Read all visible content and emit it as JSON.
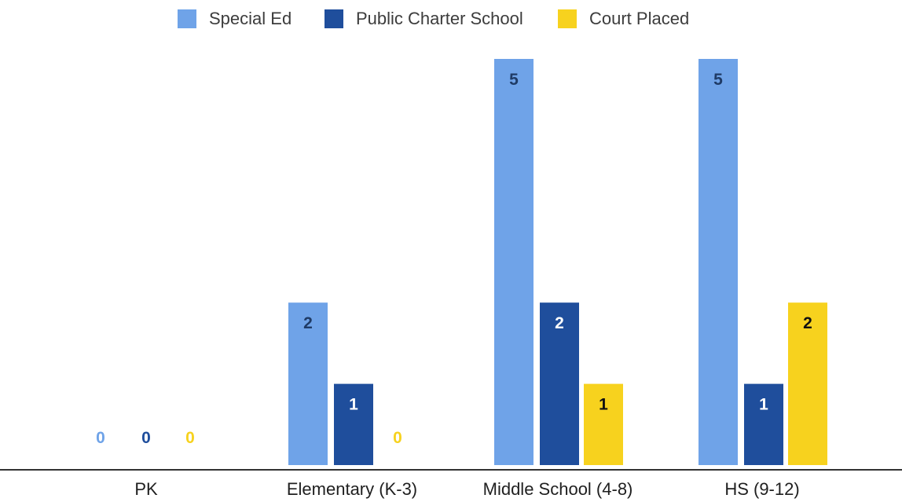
{
  "chart_data": {
    "type": "bar",
    "categories": [
      "PK",
      "Elementary (K-3)",
      "Middle School (4-8)",
      "HS (9-12)"
    ],
    "series": [
      {
        "name": "Special Ed",
        "values": [
          0,
          2,
          5,
          5
        ],
        "color": "#6fa3e8"
      },
      {
        "name": "Public Charter School",
        "values": [
          0,
          1,
          2,
          1
        ],
        "color": "#1f4e9c"
      },
      {
        "name": "Court Placed",
        "values": [
          0,
          0,
          1,
          2
        ],
        "color": "#f7d21e"
      }
    ],
    "data_labels": [
      [
        "0",
        "2",
        "5",
        "5"
      ],
      [
        "0",
        "1",
        "2",
        "1"
      ],
      [
        "0",
        "0",
        "1",
        "2"
      ]
    ],
    "legend_position": "top",
    "ylim": [
      0,
      5
    ],
    "grid": false
  }
}
